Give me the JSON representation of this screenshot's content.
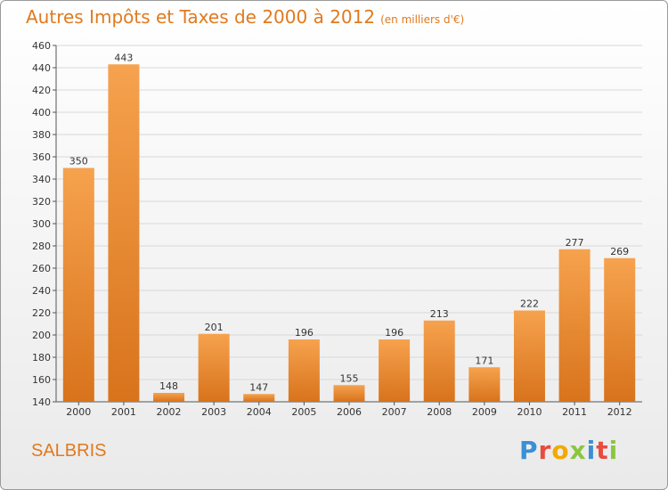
{
  "header": {
    "title": "Autres Impôts et Taxes de 2000 à 2012",
    "subtitle": "(en milliers d'€)"
  },
  "footer": {
    "place": "SALBRIS",
    "logo_letters": [
      "P",
      "r",
      "o",
      "x",
      "i",
      "t",
      "i"
    ],
    "logo_colors": [
      "#3b8fd6",
      "#e84c3d",
      "#f2a900",
      "#8cc63f",
      "#3b8fd6",
      "#e84c3d",
      "#8cc63f"
    ]
  },
  "chart_data": {
    "type": "bar",
    "title": "Autres Impôts et Taxes de 2000 à 2012",
    "subtitle": "(en milliers d'€)",
    "categories": [
      "2000",
      "2001",
      "2002",
      "2003",
      "2004",
      "2005",
      "2006",
      "2007",
      "2008",
      "2009",
      "2010",
      "2011",
      "2012"
    ],
    "values": [
      350,
      443,
      148,
      201,
      147,
      196,
      155,
      196,
      213,
      171,
      222,
      277,
      269
    ],
    "ylim": [
      140,
      460
    ],
    "yticks": [
      140,
      160,
      180,
      200,
      220,
      240,
      260,
      280,
      300,
      320,
      340,
      360,
      380,
      400,
      420,
      440,
      460
    ],
    "grid": true,
    "colors": {
      "bar_light": "#f6a24e",
      "bar_dark": "#d8731c",
      "label": "#e07a1f"
    }
  }
}
